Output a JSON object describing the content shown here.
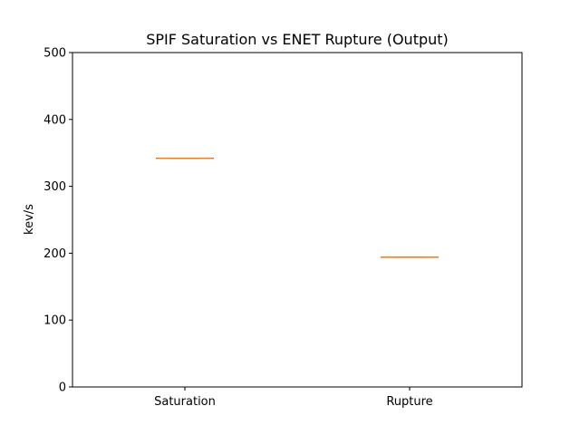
{
  "chart_data": {
    "type": "box",
    "title": "SPIF Saturation vs ENET Rupture (Output)",
    "xlabel": "",
    "ylabel": "kev/s",
    "ylim": [
      0,
      500
    ],
    "yticks": [
      0,
      100,
      200,
      300,
      400,
      500
    ],
    "categories": [
      "Saturation",
      "Rupture"
    ],
    "boxes": [
      {
        "category": "Saturation",
        "min": 342,
        "q1": 342,
        "median": 342,
        "q3": 342,
        "max": 342
      },
      {
        "category": "Rupture",
        "min": 194,
        "q1": 194,
        "median": 194,
        "q3": 194,
        "max": 194
      }
    ],
    "grid": false,
    "colors": {
      "box": "#000000",
      "median": "#ff7f0e",
      "axis": "#000000"
    }
  }
}
